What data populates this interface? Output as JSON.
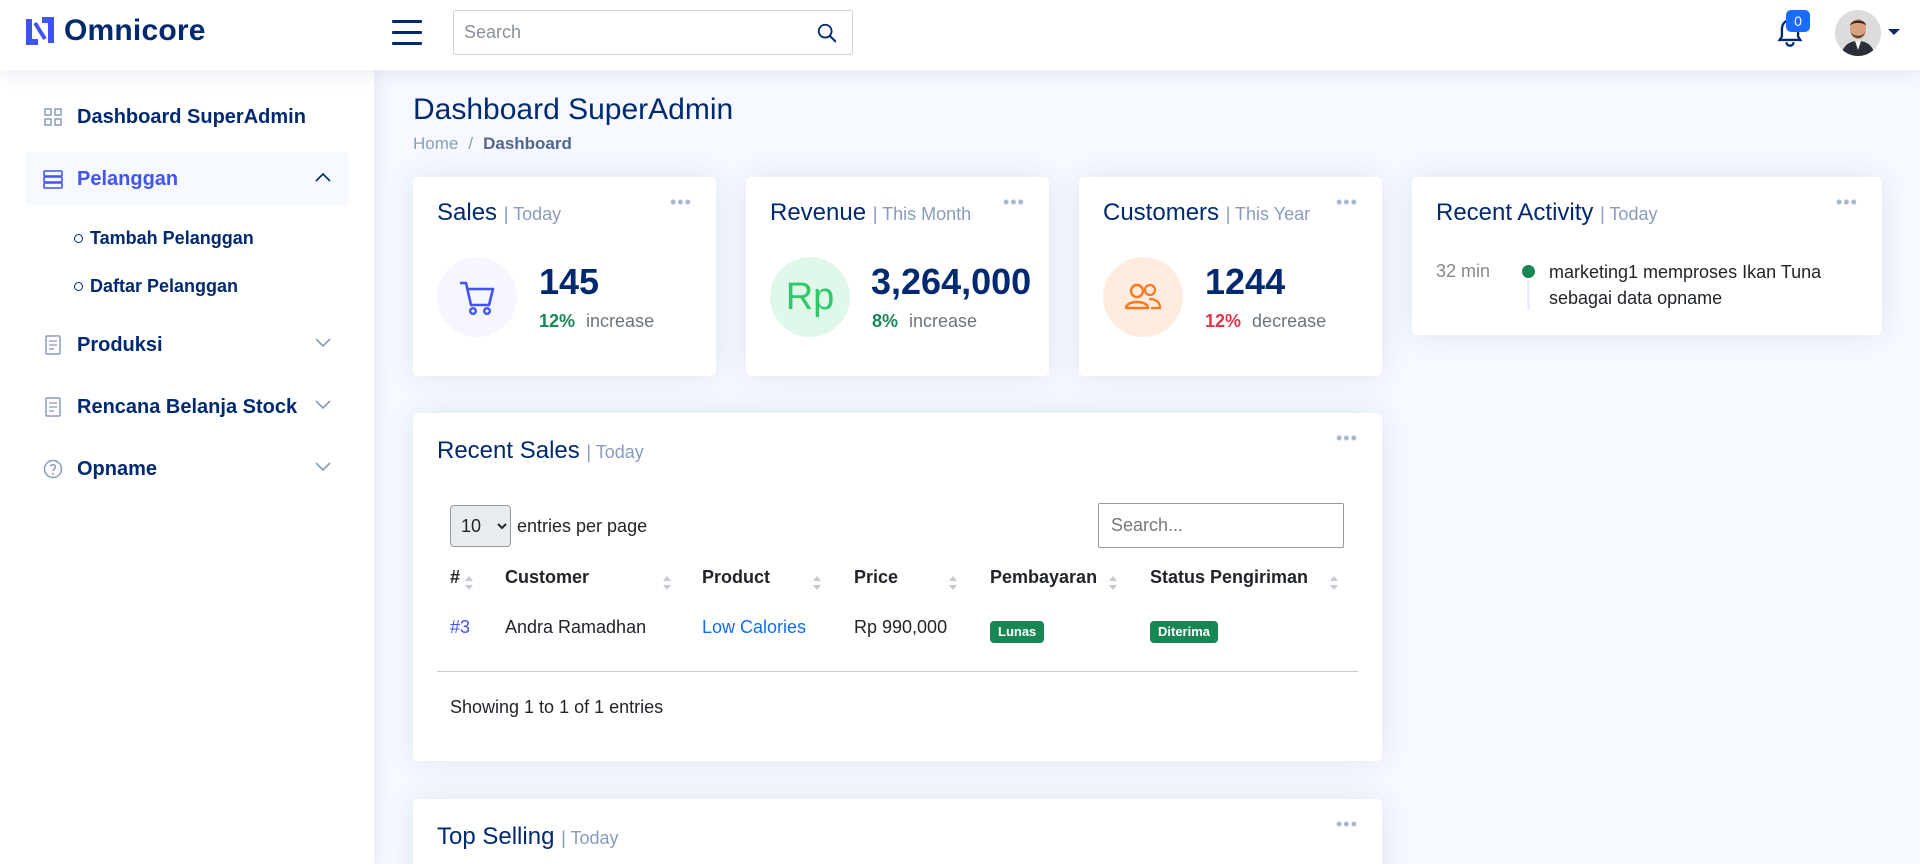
{
  "header": {
    "brand": "Omnicore",
    "search_placeholder": "Search",
    "notification_count": "0"
  },
  "sidebar": {
    "items": [
      {
        "label": "Dashboard SuperAdmin"
      },
      {
        "label": "Pelanggan"
      },
      {
        "label": "Produksi"
      },
      {
        "label": "Rencana Belanja Stock"
      },
      {
        "label": "Opname"
      }
    ],
    "subitems": [
      {
        "label": "Tambah Pelanggan"
      },
      {
        "label": "Daftar Pelanggan"
      }
    ]
  },
  "page": {
    "title": "Dashboard SuperAdmin",
    "breadcrumb": [
      "Home",
      "/",
      "Dashboard"
    ]
  },
  "cards": {
    "sales": {
      "title": "Sales",
      "period": "| Today",
      "value": "145",
      "pct": "12%",
      "change": "increase"
    },
    "revenue": {
      "title": "Revenue",
      "period": "| This Month",
      "icon_text": "Rp",
      "value": "3,264,000",
      "pct": "8%",
      "change": "increase"
    },
    "customers": {
      "title": "Customers",
      "period": "| This Year",
      "value": "1244",
      "pct": "12%",
      "change": "decrease"
    },
    "activity": {
      "title": "Recent Activity",
      "period": "| Today",
      "time": "32 min",
      "text": "marketing1 memproses Ikan Tuna sebagai data opname"
    }
  },
  "recent_sales": {
    "title": "Recent Sales",
    "period": "| Today",
    "page_size": "10",
    "entries_label": "entries per page",
    "search_placeholder": "Search...",
    "columns": [
      "#",
      "Customer",
      "Product",
      "Price",
      "Pembayaran",
      "Status Pengiriman"
    ],
    "rows": [
      {
        "id": "#3",
        "customer": "Andra Ramadhan",
        "product": "Low Calories",
        "price": "Rp 990,000",
        "payment": "Lunas",
        "status": "Diterima"
      }
    ],
    "showing": "Showing 1 to 1 of 1 entries"
  },
  "top_selling": {
    "title": "Top Selling",
    "period": "| Today"
  },
  "colors": {
    "primary": "#012970",
    "accent": "#4154f1",
    "success": "#198754",
    "danger": "#dc3545"
  }
}
